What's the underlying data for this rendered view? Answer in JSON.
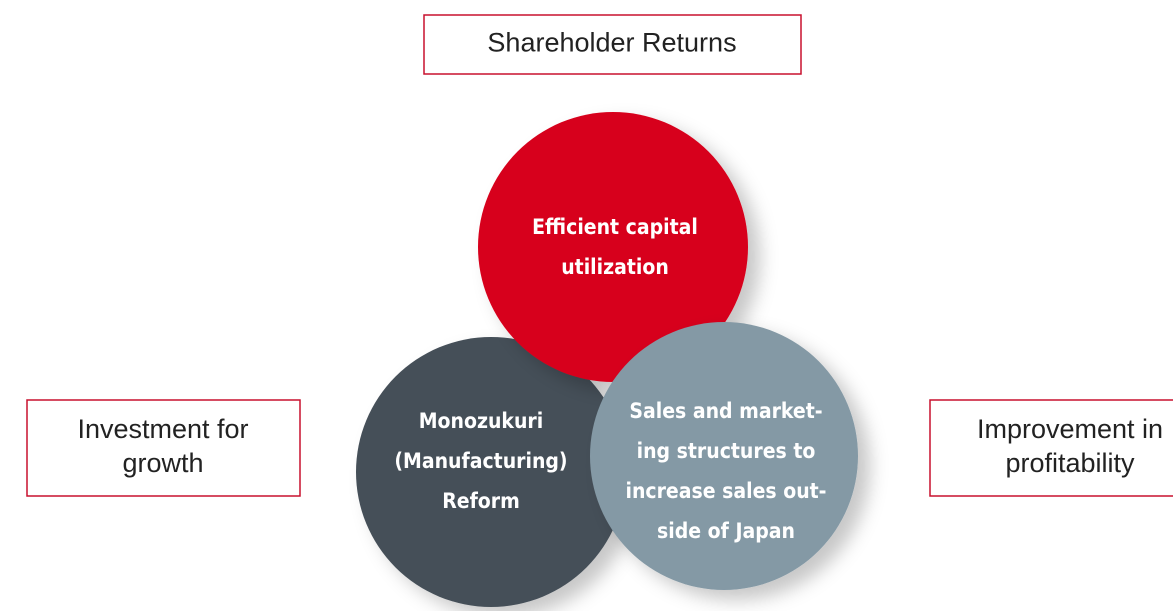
{
  "boxes": [
    {
      "lines": [
        "Shareholder Returns"
      ]
    },
    {
      "lines": [
        "Investment for",
        "growth"
      ]
    },
    {
      "lines": [
        "Improvement in",
        "profitability"
      ]
    }
  ],
  "circles": [
    {
      "lines": [
        "Efficient capital",
        "utilization"
      ]
    },
    {
      "lines": [
        "Monozukuri",
        "(Manufacturing)",
        "Reform"
      ]
    },
    {
      "lines": [
        "Sales and market-",
        "ing structures to",
        "increase sales out-",
        "side of Japan"
      ]
    }
  ]
}
